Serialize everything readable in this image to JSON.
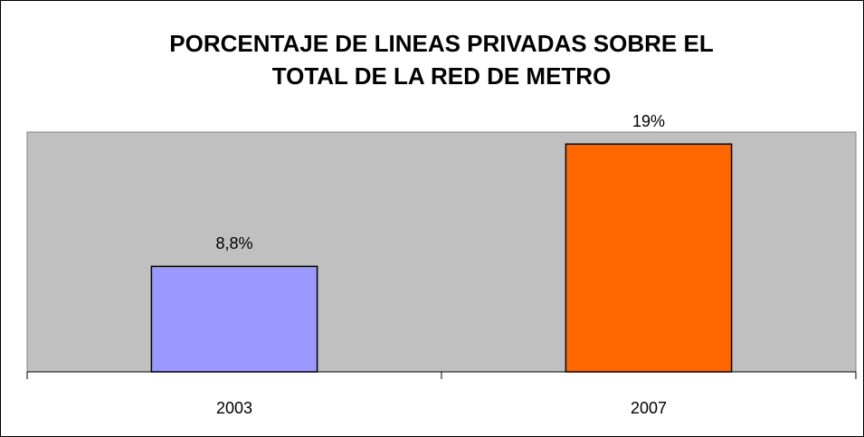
{
  "chart_data": {
    "type": "bar",
    "title": [
      "PORCENTAJE DE LINEAS PRIVADAS SOBRE EL",
      "TOTAL DE LA RED DE METRO"
    ],
    "categories": [
      "2003",
      "2007"
    ],
    "values": [
      8.8,
      19
    ],
    "value_labels": [
      "8,8%",
      "19%"
    ],
    "colors": [
      "#9999ff",
      "#ff6600"
    ],
    "plot_background": "#c0c0c0",
    "ylim": [
      0,
      20
    ]
  }
}
